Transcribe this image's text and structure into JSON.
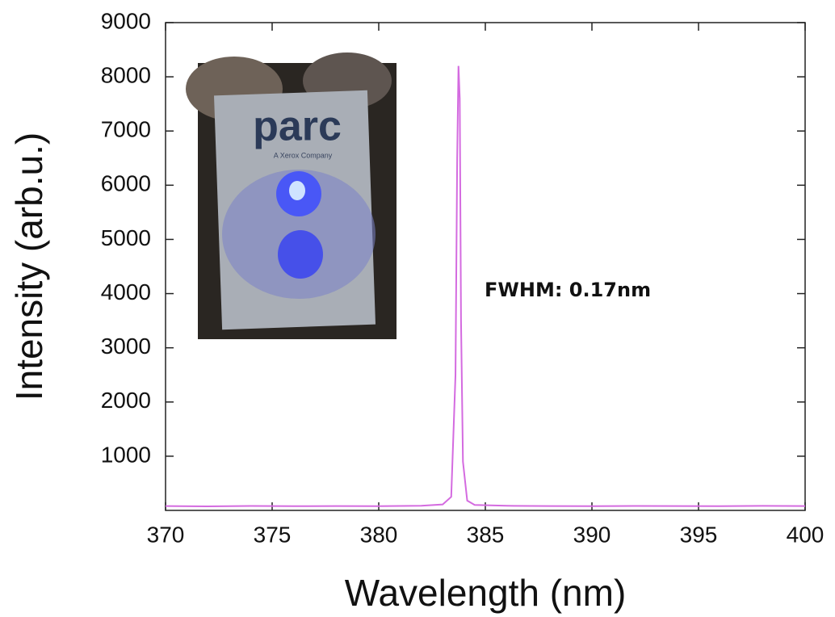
{
  "chart_data": {
    "type": "line",
    "xlabel": "Wavelength (nm)",
    "ylabel": "Intensity (arb.u.)",
    "annotation": "FWHM: 0.17nm",
    "inset_text": "parc",
    "inset_subtext": "A Xerox Company",
    "x": [
      370,
      372,
      374,
      376,
      378,
      380,
      382,
      383,
      383.4,
      383.6,
      383.68,
      383.74,
      383.8,
      383.86,
      383.95,
      384.15,
      384.5,
      386,
      388,
      390,
      392,
      394,
      396,
      398,
      400
    ],
    "values": [
      80,
      75,
      82,
      78,
      80,
      78,
      85,
      110,
      250,
      2500,
      6500,
      8200,
      7600,
      3500,
      900,
      180,
      100,
      85,
      80,
      78,
      82,
      80,
      79,
      83,
      80
    ],
    "color": "#d46be0",
    "xlim": [
      370,
      400
    ],
    "xticks": [
      370,
      375,
      380,
      385,
      390,
      395,
      400
    ],
    "ylim": [
      0,
      9000
    ],
    "yticks": [
      1000,
      2000,
      3000,
      4000,
      5000,
      6000,
      7000,
      8000,
      9000
    ]
  }
}
